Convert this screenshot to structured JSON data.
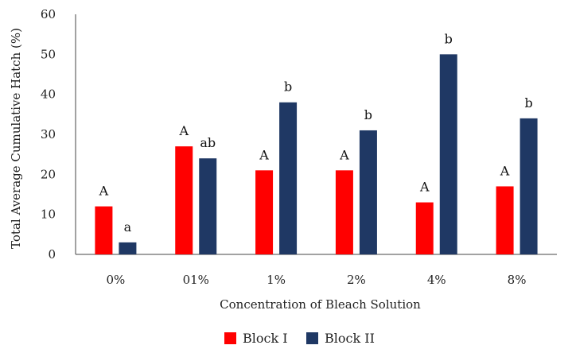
{
  "chart_data": {
    "type": "bar",
    "title": "",
    "xlabel": "Concentration of Bleach Solution",
    "ylabel": "Total Average Cumulative Hatch (%)",
    "ylim": [
      0,
      60
    ],
    "yticks": [
      0,
      10,
      20,
      30,
      40,
      50,
      60
    ],
    "categories": [
      "0%",
      "01%",
      "1%",
      "2%",
      "4%",
      "8%"
    ],
    "series": [
      {
        "name": "Block I",
        "color": "#ff0000",
        "values": [
          12,
          27,
          21,
          21,
          13,
          17
        ],
        "labels": [
          "A",
          "A",
          "A",
          "A",
          "A",
          "A"
        ]
      },
      {
        "name": "Block II",
        "color": "#1f3864",
        "values": [
          3,
          24,
          38,
          31,
          50,
          34
        ],
        "labels": [
          "a",
          "ab",
          "b",
          "b",
          "b",
          "b"
        ]
      }
    ],
    "grid": false,
    "legend": "bottom"
  }
}
